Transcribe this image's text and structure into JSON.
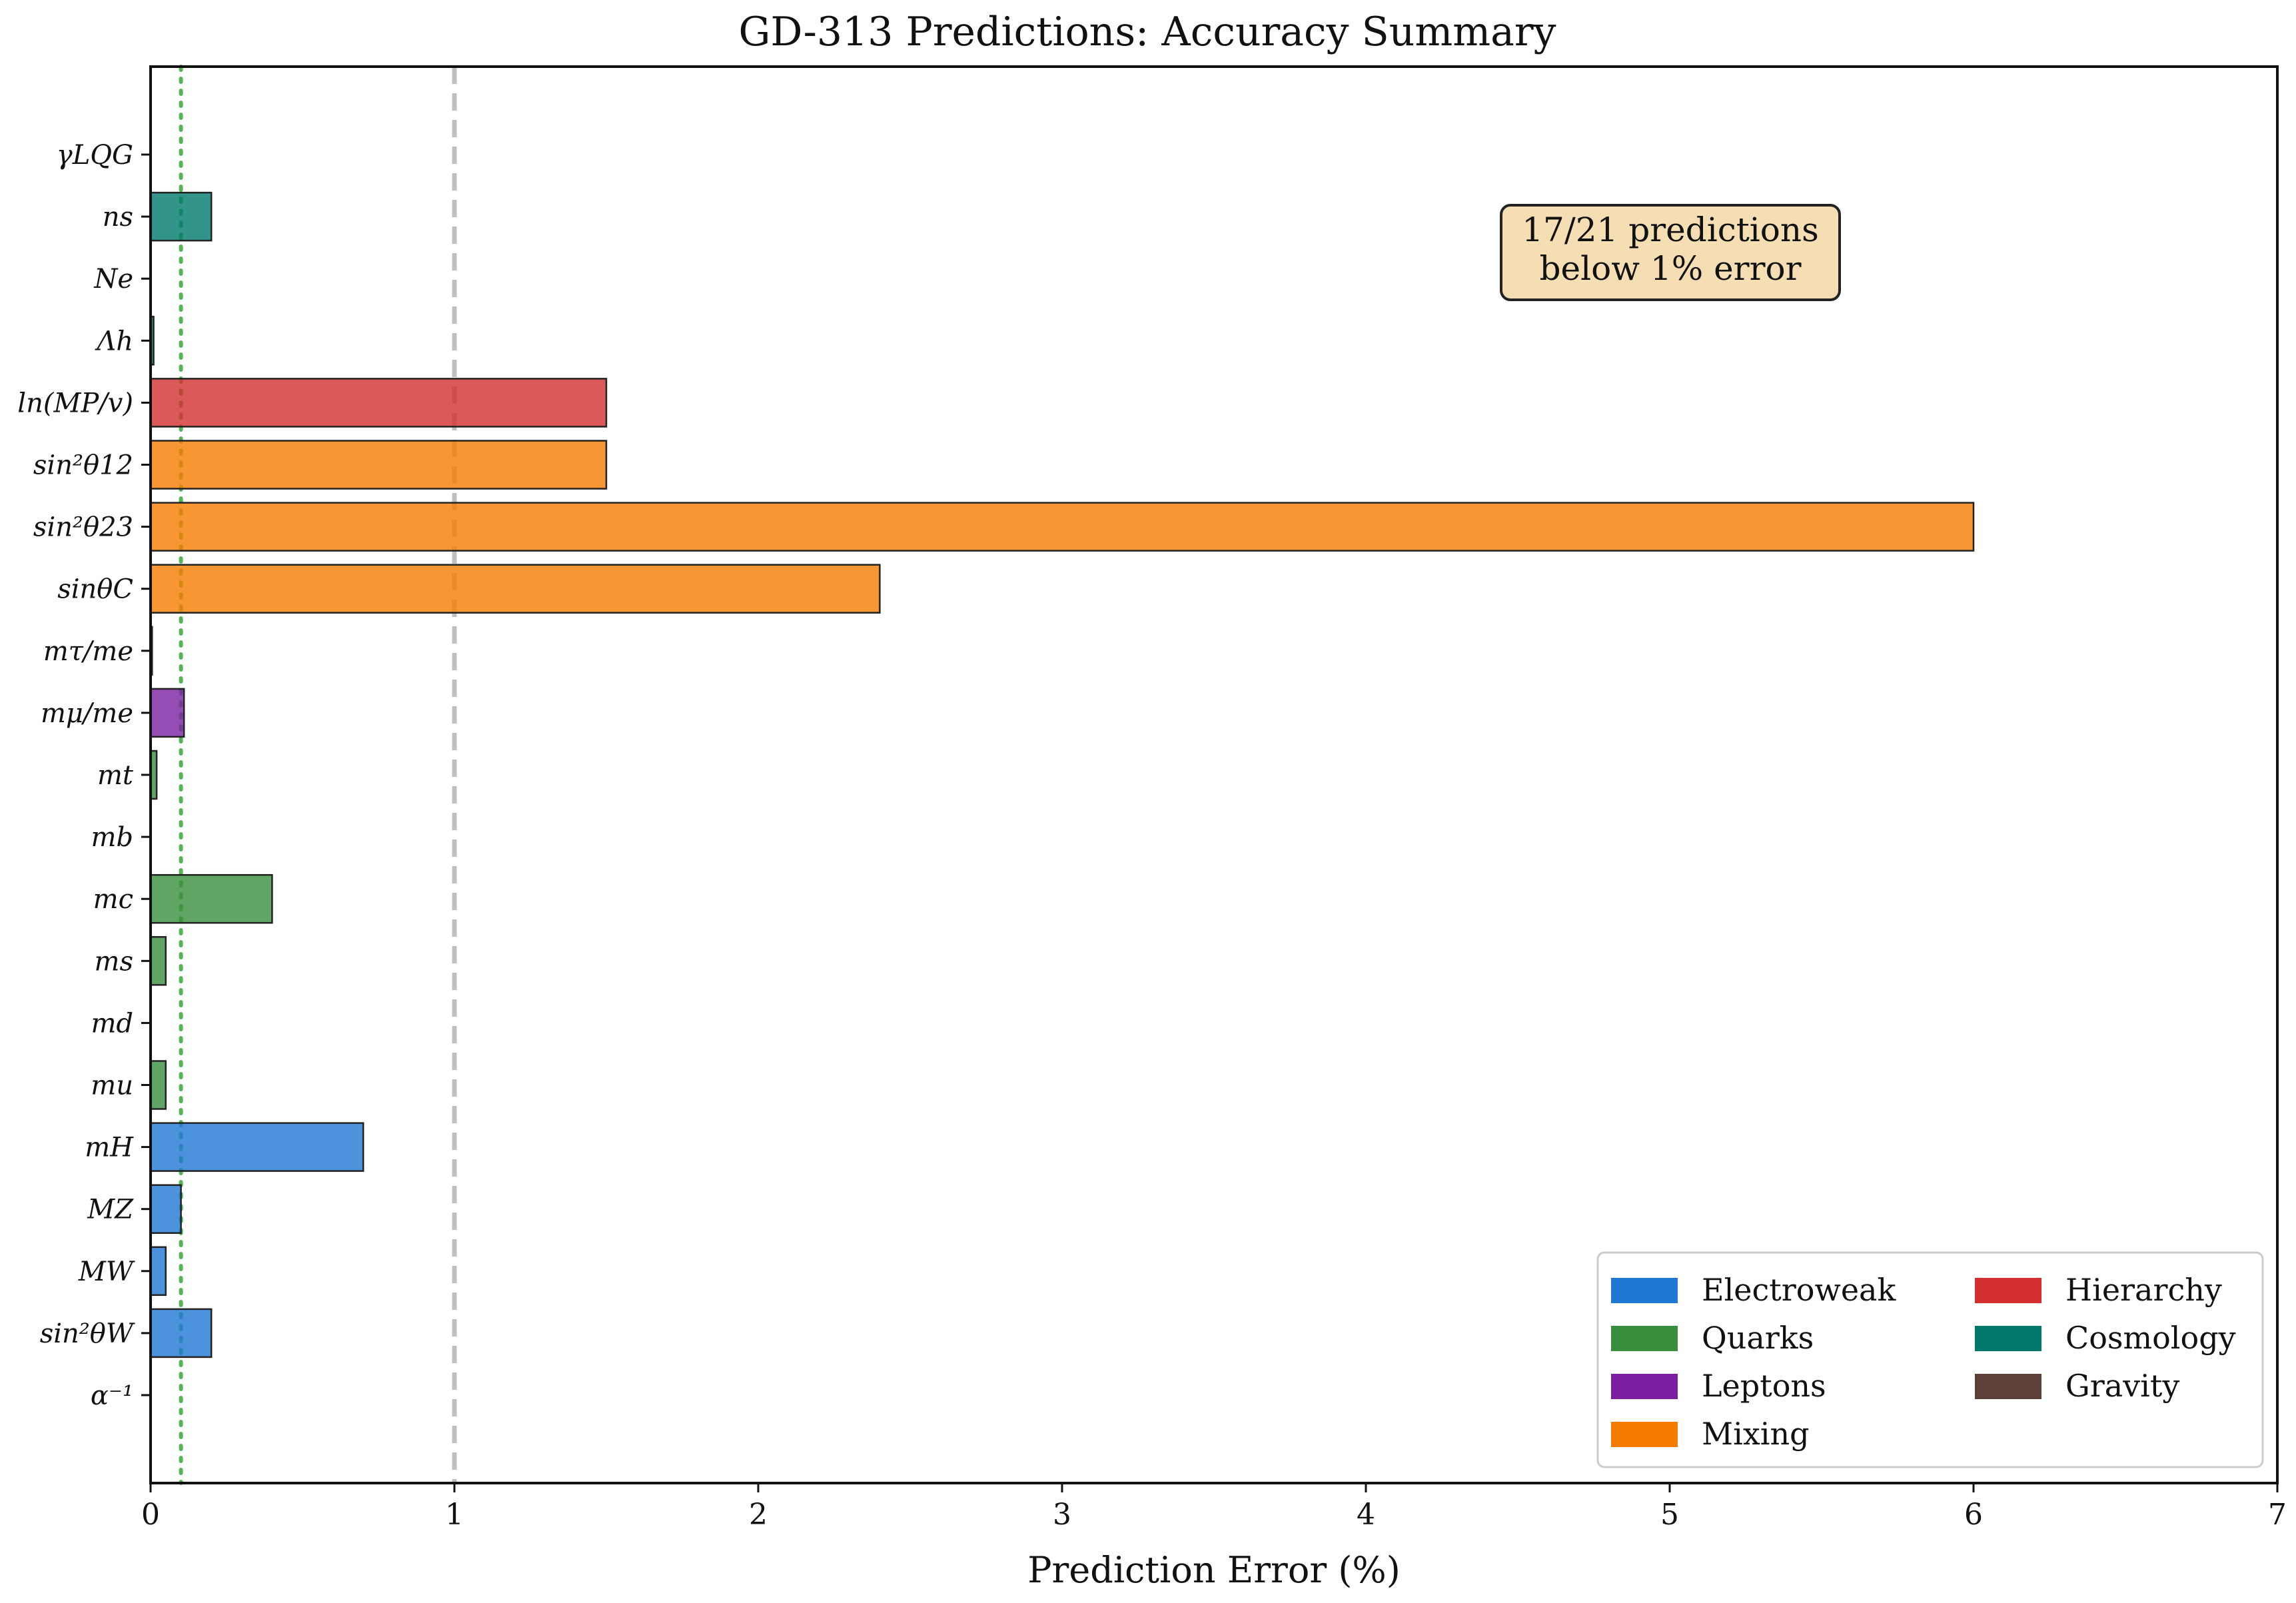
{
  "chart_data": {
    "type": "bar",
    "orientation": "horizontal",
    "title": "GD-313 Predictions: Accuracy Summary",
    "xlabel": "Prediction Error (%)",
    "ylabel": "",
    "xlim": [
      0,
      7
    ],
    "xticks": [
      "0",
      "1",
      "2",
      "3",
      "4",
      "5",
      "6",
      "7"
    ],
    "grid": false,
    "reference_lines": [
      {
        "x": 1.0,
        "style": "dashed",
        "color": "#bdbdbd"
      },
      {
        "x": 0.1,
        "style": "dotted",
        "color": "#4caf50"
      }
    ],
    "annotation": {
      "line1": "17/21 predictions",
      "line2": "below 1% error",
      "placement": "top-right"
    },
    "legend": {
      "placement": "bottom-right",
      "entries": [
        {
          "name": "Electroweak",
          "color": "#1f77d4"
        },
        {
          "name": "Quarks",
          "color": "#388e3c"
        },
        {
          "name": "Leptons",
          "color": "#7b1fa2"
        },
        {
          "name": "Mixing",
          "color": "#f57c00"
        },
        {
          "name": "Hierarchy",
          "color": "#d32f2f"
        },
        {
          "name": "Cosmology",
          "color": "#00796b"
        },
        {
          "name": "Gravity",
          "color": "#5d4037"
        }
      ]
    },
    "bars": [
      {
        "label": "α⁻¹",
        "value": 0.0,
        "group": "Electroweak"
      },
      {
        "label": "sin²θW",
        "value": 0.2,
        "group": "Electroweak"
      },
      {
        "label": "MW",
        "value": 0.05,
        "group": "Electroweak"
      },
      {
        "label": "MZ",
        "value": 0.1,
        "group": "Electroweak"
      },
      {
        "label": "mH",
        "value": 0.7,
        "group": "Electroweak"
      },
      {
        "label": "mu",
        "value": 0.05,
        "group": "Quarks"
      },
      {
        "label": "md",
        "value": 0.0,
        "group": "Quarks"
      },
      {
        "label": "ms",
        "value": 0.05,
        "group": "Quarks"
      },
      {
        "label": "mc",
        "value": 0.4,
        "group": "Quarks"
      },
      {
        "label": "mb",
        "value": 0.0,
        "group": "Quarks"
      },
      {
        "label": "mt",
        "value": 0.02,
        "group": "Quarks"
      },
      {
        "label": "mμ/me",
        "value": 0.11,
        "group": "Leptons"
      },
      {
        "label": "mτ/me",
        "value": 0.005,
        "group": "Leptons"
      },
      {
        "label": "sinθC",
        "value": 2.4,
        "group": "Mixing"
      },
      {
        "label": "sin²θ23",
        "value": 6.0,
        "group": "Mixing"
      },
      {
        "label": "sin²θ12",
        "value": 1.5,
        "group": "Mixing"
      },
      {
        "label": "ln(MP/v)",
        "value": 1.5,
        "group": "Hierarchy"
      },
      {
        "label": "Λh",
        "value": 0.01,
        "group": "Cosmology"
      },
      {
        "label": "Ne",
        "value": 0.0,
        "group": "Cosmology"
      },
      {
        "label": "ns",
        "value": 0.2,
        "group": "Cosmology"
      },
      {
        "label": "γLQG",
        "value": 0.0,
        "group": "Gravity"
      }
    ]
  }
}
